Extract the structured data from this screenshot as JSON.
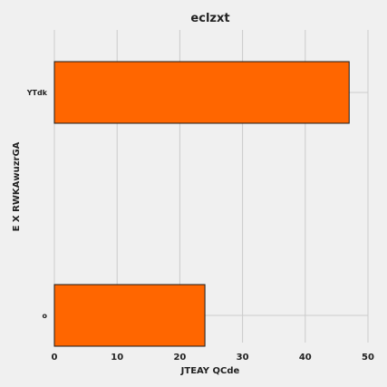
{
  "chart_data": {
    "type": "bar",
    "orientation": "horizontal",
    "title": "eclzxt",
    "xlabel": "JTEAY QCde",
    "ylabel": "E X RWKAwuzrGA",
    "categories": [
      "YTdk",
      "o"
    ],
    "values": [
      47,
      24
    ],
    "xlim": [
      0,
      50
    ],
    "xticks": [
      0,
      10,
      20,
      30,
      40,
      50
    ],
    "grid": true,
    "bar_color": "#ff6600",
    "background": "#f0f0f0"
  }
}
